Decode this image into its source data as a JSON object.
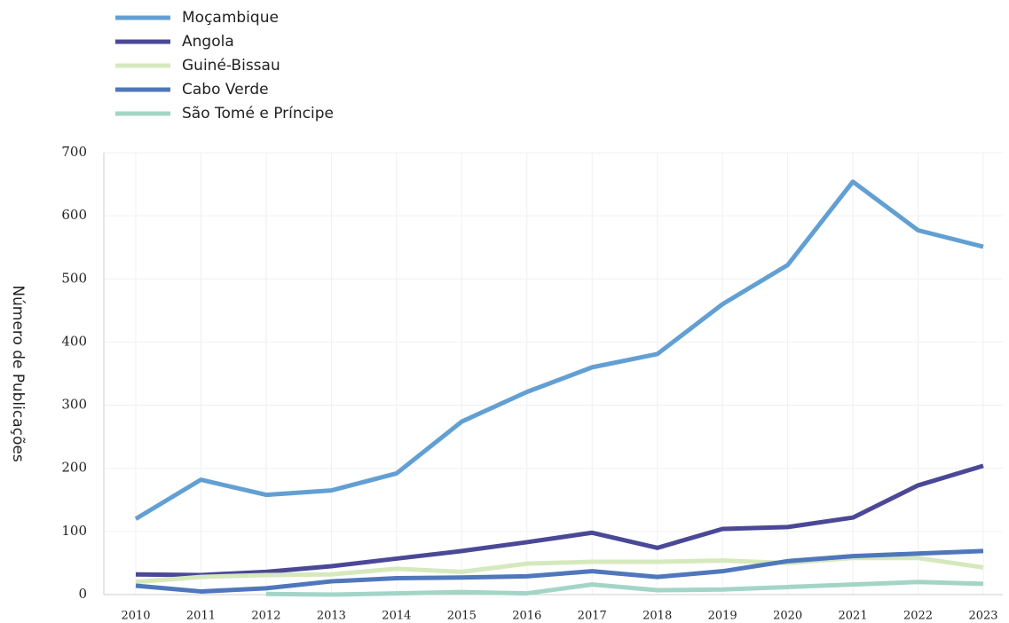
{
  "chart_data": {
    "type": "line",
    "y_label": "Número de Publicações",
    "categories": [
      "2010",
      "2011",
      "2012",
      "2013",
      "2014",
      "2015",
      "2016",
      "2017",
      "2018",
      "2019",
      "2020",
      "2021",
      "2022",
      "2023"
    ],
    "series": [
      {
        "name": "Moçambique",
        "color": "#629fd3",
        "values": [
          120,
          182,
          158,
          165,
          192,
          274,
          321,
          360,
          381,
          460,
          522,
          654,
          577,
          551
        ]
      },
      {
        "name": "Angola",
        "color": "#4a4897",
        "values": [
          32,
          31,
          36,
          45,
          57,
          69,
          83,
          98,
          74,
          104,
          107,
          122,
          173,
          204
        ]
      },
      {
        "name": "Guiné-Bissau",
        "color": "#d6e9bd",
        "values": [
          20,
          28,
          31,
          32,
          41,
          36,
          49,
          52,
          52,
          54,
          50,
          58,
          58,
          43
        ]
      },
      {
        "name": "Cabo Verde",
        "color": "#4f77bb",
        "values": [
          14,
          5,
          10,
          21,
          26,
          27,
          29,
          37,
          28,
          37,
          53,
          61,
          65,
          69
        ]
      },
      {
        "name": "São Tomé e Príncipe",
        "color": "#a3d5c6",
        "values": [
          null,
          null,
          1,
          0,
          2,
          4,
          2,
          16,
          7,
          8,
          12,
          16,
          20,
          17
        ]
      }
    ],
    "ylim": [
      0,
      700
    ],
    "yticks": [
      0,
      100,
      200,
      300,
      400,
      500,
      600,
      700
    ],
    "grid": true
  }
}
